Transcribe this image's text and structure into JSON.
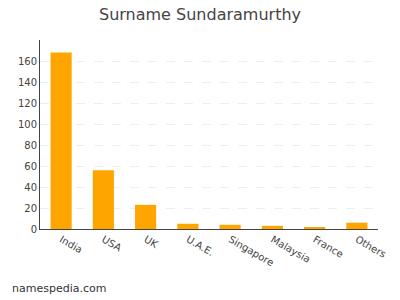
{
  "chart_data": {
    "type": "bar",
    "title": "Surname Sundaramurthy",
    "categories": [
      "India",
      "USA",
      "UK",
      "U.A.E.",
      "Singapore",
      "Malaysia",
      "France",
      "Others"
    ],
    "values": [
      168,
      56,
      23,
      5,
      4,
      3,
      1,
      6
    ],
    "color": "#FFA500",
    "ylim": [
      0,
      180
    ],
    "yticks": [
      0,
      20,
      40,
      60,
      80,
      100,
      120,
      140,
      160
    ],
    "grid": true,
    "annotations": [
      "namespedia.com"
    ]
  }
}
